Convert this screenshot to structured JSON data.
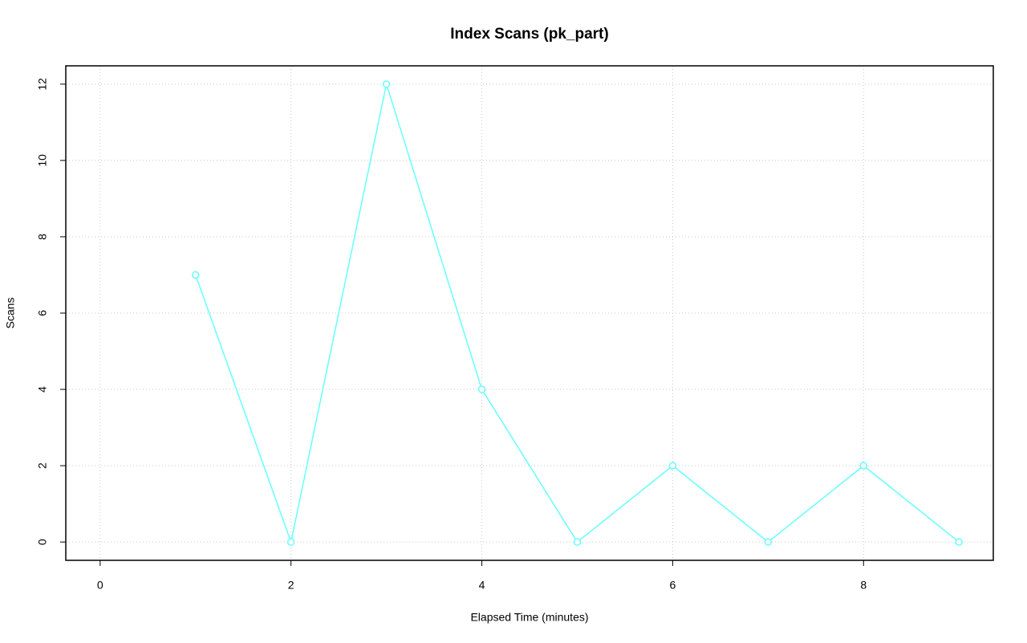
{
  "chart_data": {
    "type": "line",
    "title": "Index Scans (pk_part)",
    "x_label": "Elapsed Time (minutes)",
    "y_label": "Scans",
    "x": [
      1,
      2,
      3,
      4,
      5,
      6,
      7,
      8,
      9
    ],
    "series": [
      {
        "color": "#66ffff",
        "values": [
          7,
          0,
          12,
          4,
          0,
          2,
          0,
          2,
          0
        ]
      }
    ],
    "xlim": [
      -0.36,
      9.36
    ],
    "xticks": [
      0,
      2,
      4,
      6,
      8
    ],
    "ylim": [
      -0.48,
      12.48
    ],
    "yticks": [
      0,
      2,
      4,
      6,
      8,
      10,
      12
    ],
    "grid": true
  }
}
